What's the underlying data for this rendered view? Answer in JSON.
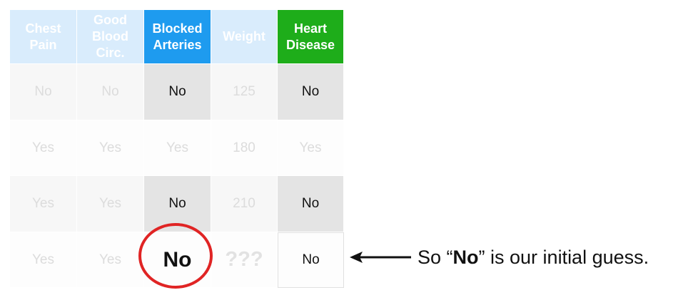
{
  "headers": [
    "Chest Pain",
    "Good Blood Circ.",
    "Blocked Arteries",
    "Weight",
    "Heart Disease"
  ],
  "rows": [
    [
      "No",
      "No",
      "No",
      "125",
      "No"
    ],
    [
      "Yes",
      "Yes",
      "Yes",
      "180",
      "Yes"
    ],
    [
      "Yes",
      "Yes",
      "No",
      "210",
      "No"
    ],
    [
      "Yes",
      "Yes",
      "No",
      "???",
      "No"
    ]
  ],
  "caption": {
    "prefix": "So “",
    "bold": "No",
    "suffix": "” is our initial guess."
  },
  "colors": {
    "highlight_header": "#1e9bef",
    "target_header": "#1ead1a",
    "circle": "#e02424"
  }
}
